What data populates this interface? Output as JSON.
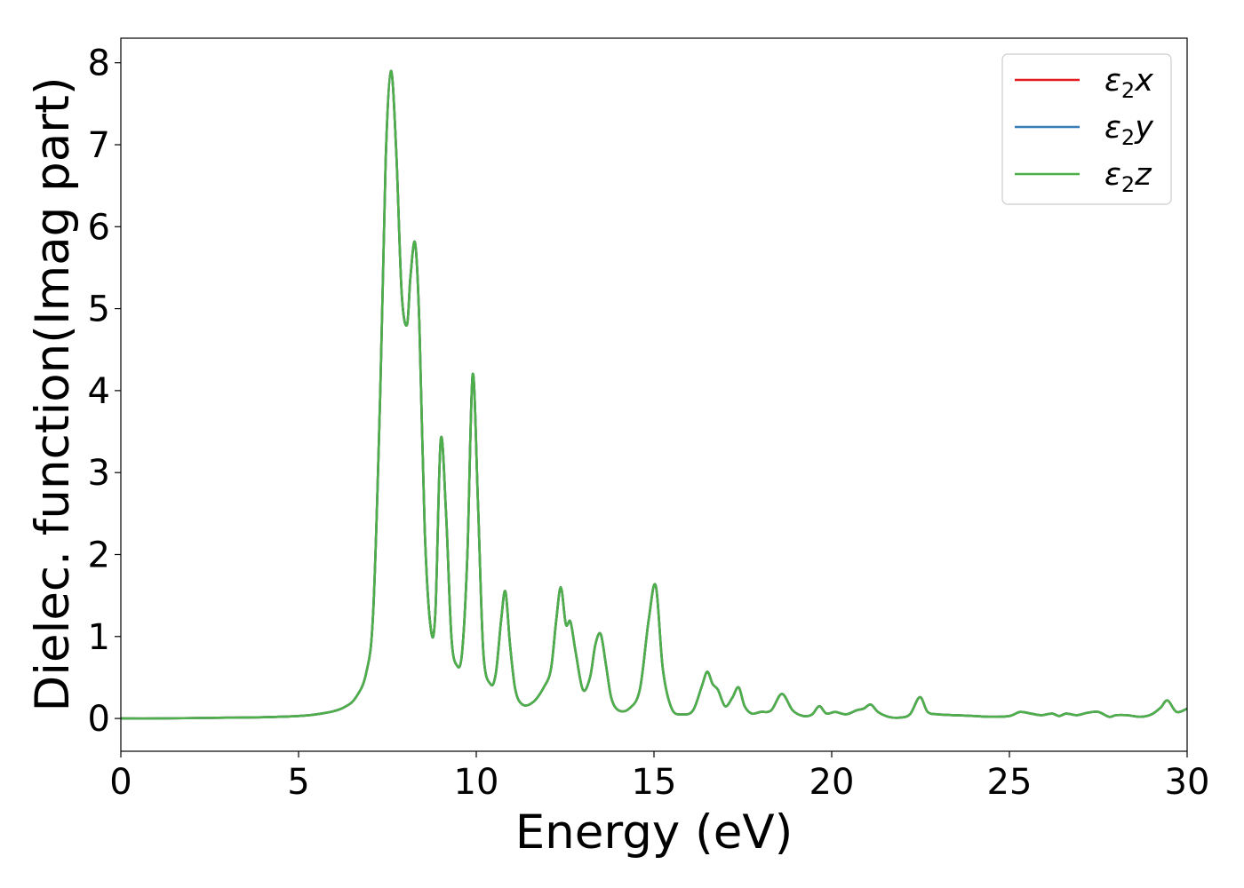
{
  "chart_data": {
    "type": "line",
    "xlabel": "Energy (eV)",
    "ylabel": "Dielec. function(Imag part)",
    "xlim": [
      0,
      30
    ],
    "ylim": [
      -0.4,
      8.3
    ],
    "xticks": [
      0,
      5,
      10,
      15,
      20,
      25,
      30
    ],
    "yticks": [
      0,
      1,
      2,
      3,
      4,
      5,
      6,
      7,
      8
    ],
    "grid": false,
    "legend_position": "top-right",
    "x": [
      0.0,
      1.0,
      2.0,
      3.0,
      4.0,
      5.0,
      5.5,
      6.0,
      6.3,
      6.6,
      6.9,
      7.1,
      7.3,
      7.45,
      7.6,
      7.75,
      7.9,
      8.05,
      8.15,
      8.28,
      8.4,
      8.55,
      8.72,
      8.85,
      9.0,
      9.15,
      9.3,
      9.45,
      9.6,
      9.75,
      9.9,
      10.05,
      10.2,
      10.4,
      10.55,
      10.7,
      10.82,
      10.95,
      11.1,
      11.3,
      11.6,
      11.9,
      12.1,
      12.25,
      12.38,
      12.52,
      12.65,
      12.8,
      13.0,
      13.2,
      13.35,
      13.5,
      13.65,
      13.8,
      14.0,
      14.3,
      14.6,
      14.85,
      15.05,
      15.25,
      15.5,
      15.8,
      16.1,
      16.35,
      16.5,
      16.65,
      16.8,
      17.0,
      17.2,
      17.38,
      17.55,
      17.75,
      18.0,
      18.3,
      18.6,
      18.9,
      19.2,
      19.45,
      19.65,
      19.85,
      20.1,
      20.4,
      20.7,
      20.9,
      21.1,
      21.3,
      21.6,
      21.9,
      22.2,
      22.48,
      22.7,
      23.0,
      23.5,
      24.0,
      24.5,
      25.0,
      25.3,
      25.6,
      25.9,
      26.2,
      26.4,
      26.6,
      26.9,
      27.2,
      27.5,
      27.8,
      28.0,
      28.3,
      28.7,
      29.0,
      29.25,
      29.45,
      29.7,
      30.0
    ],
    "series": [
      {
        "name": "ε2x",
        "color": "#e41a1c",
        "values": [
          0.0,
          0.0,
          0.005,
          0.01,
          0.015,
          0.03,
          0.05,
          0.09,
          0.14,
          0.25,
          0.55,
          1.3,
          4.0,
          6.8,
          7.9,
          6.9,
          5.2,
          4.8,
          5.4,
          5.8,
          4.8,
          2.3,
          1.1,
          1.3,
          3.4,
          2.5,
          1.0,
          0.65,
          0.8,
          2.0,
          4.2,
          2.6,
          0.8,
          0.42,
          0.55,
          1.2,
          1.55,
          0.9,
          0.35,
          0.17,
          0.2,
          0.38,
          0.6,
          1.2,
          1.6,
          1.15,
          1.18,
          0.8,
          0.35,
          0.5,
          0.9,
          1.03,
          0.65,
          0.25,
          0.1,
          0.12,
          0.35,
          1.2,
          1.62,
          0.6,
          0.12,
          0.05,
          0.1,
          0.4,
          0.57,
          0.42,
          0.35,
          0.15,
          0.25,
          0.38,
          0.15,
          0.06,
          0.08,
          0.1,
          0.3,
          0.1,
          0.03,
          0.05,
          0.15,
          0.06,
          0.08,
          0.05,
          0.1,
          0.12,
          0.17,
          0.08,
          0.02,
          0.01,
          0.05,
          0.26,
          0.08,
          0.05,
          0.04,
          0.03,
          0.02,
          0.03,
          0.08,
          0.06,
          0.04,
          0.06,
          0.03,
          0.06,
          0.04,
          0.07,
          0.08,
          0.02,
          0.04,
          0.04,
          0.02,
          0.05,
          0.13,
          0.22,
          0.08,
          0.12
        ]
      },
      {
        "name": "ε2y",
        "color": "#377eb8",
        "values": [
          0.0,
          0.0,
          0.005,
          0.01,
          0.015,
          0.03,
          0.05,
          0.09,
          0.14,
          0.25,
          0.55,
          1.3,
          4.0,
          6.8,
          7.9,
          6.9,
          5.2,
          4.8,
          5.4,
          5.8,
          4.8,
          2.3,
          1.1,
          1.3,
          3.4,
          2.5,
          1.0,
          0.65,
          0.8,
          2.0,
          4.2,
          2.6,
          0.8,
          0.42,
          0.55,
          1.2,
          1.55,
          0.9,
          0.35,
          0.17,
          0.2,
          0.38,
          0.6,
          1.2,
          1.6,
          1.15,
          1.18,
          0.8,
          0.35,
          0.5,
          0.9,
          1.03,
          0.65,
          0.25,
          0.1,
          0.12,
          0.35,
          1.2,
          1.62,
          0.6,
          0.12,
          0.05,
          0.1,
          0.4,
          0.57,
          0.42,
          0.35,
          0.15,
          0.25,
          0.38,
          0.15,
          0.06,
          0.08,
          0.1,
          0.3,
          0.1,
          0.03,
          0.05,
          0.15,
          0.06,
          0.08,
          0.05,
          0.1,
          0.12,
          0.17,
          0.08,
          0.02,
          0.01,
          0.05,
          0.26,
          0.08,
          0.05,
          0.04,
          0.03,
          0.02,
          0.03,
          0.08,
          0.06,
          0.04,
          0.06,
          0.03,
          0.06,
          0.04,
          0.07,
          0.08,
          0.02,
          0.04,
          0.04,
          0.02,
          0.05,
          0.13,
          0.22,
          0.08,
          0.12
        ]
      },
      {
        "name": "ε2z",
        "color": "#4daf4a",
        "values": [
          0.0,
          0.0,
          0.005,
          0.01,
          0.015,
          0.03,
          0.05,
          0.09,
          0.14,
          0.25,
          0.55,
          1.3,
          4.0,
          6.8,
          7.9,
          6.9,
          5.2,
          4.8,
          5.4,
          5.8,
          4.8,
          2.3,
          1.1,
          1.3,
          3.4,
          2.5,
          1.0,
          0.65,
          0.8,
          2.0,
          4.2,
          2.6,
          0.8,
          0.42,
          0.55,
          1.2,
          1.55,
          0.9,
          0.35,
          0.17,
          0.2,
          0.38,
          0.6,
          1.2,
          1.6,
          1.15,
          1.18,
          0.8,
          0.35,
          0.5,
          0.9,
          1.03,
          0.65,
          0.25,
          0.1,
          0.12,
          0.35,
          1.2,
          1.62,
          0.6,
          0.12,
          0.05,
          0.1,
          0.4,
          0.57,
          0.42,
          0.35,
          0.15,
          0.25,
          0.38,
          0.15,
          0.06,
          0.08,
          0.1,
          0.3,
          0.1,
          0.03,
          0.05,
          0.15,
          0.06,
          0.08,
          0.05,
          0.1,
          0.12,
          0.17,
          0.08,
          0.02,
          0.01,
          0.05,
          0.26,
          0.08,
          0.05,
          0.04,
          0.03,
          0.02,
          0.03,
          0.08,
          0.06,
          0.04,
          0.06,
          0.03,
          0.06,
          0.04,
          0.07,
          0.08,
          0.02,
          0.04,
          0.04,
          0.02,
          0.05,
          0.13,
          0.22,
          0.08,
          0.12
        ]
      }
    ],
    "legend": [
      {
        "symbol": "ε",
        "sub": "2",
        "axis": "x",
        "color": "#e41a1c"
      },
      {
        "symbol": "ε",
        "sub": "2",
        "axis": "y",
        "color": "#377eb8"
      },
      {
        "symbol": "ε",
        "sub": "2",
        "axis": "z",
        "color": "#4daf4a"
      }
    ]
  }
}
